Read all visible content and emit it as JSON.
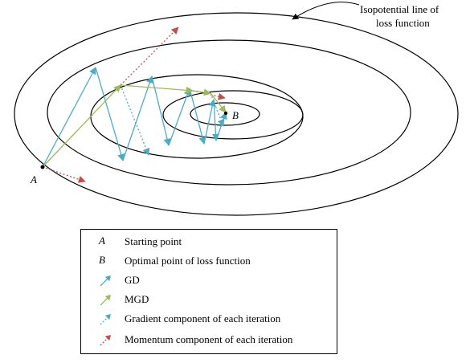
{
  "annotation": {
    "line1": "Isopotential line of",
    "line2": "loss function"
  },
  "points": {
    "start": "A",
    "optimum": "B"
  },
  "legend": [
    {
      "key": "A",
      "kind": "letter",
      "label": "Starting point"
    },
    {
      "key": "B",
      "kind": "letter",
      "label": "Optimal point of loss function"
    },
    {
      "key": "gd",
      "kind": "arrow-solid",
      "color": "#4bacc6",
      "label": "GD"
    },
    {
      "key": "mgd",
      "kind": "arrow-solid",
      "color": "#9bbb59",
      "label": "MGD"
    },
    {
      "key": "gradient",
      "kind": "arrow-dotted",
      "color": "#4bacc6",
      "label": "Gradient component of each iteration"
    },
    {
      "key": "momentum",
      "kind": "arrow-dotted",
      "color": "#c0504d",
      "label": "Momentum component of each iteration"
    }
  ],
  "colors": {
    "gd": "#4bacc6",
    "mgd": "#9bbb59",
    "gradient": "#4bacc6",
    "momentum": "#c0504d",
    "contour": "#000000"
  }
}
